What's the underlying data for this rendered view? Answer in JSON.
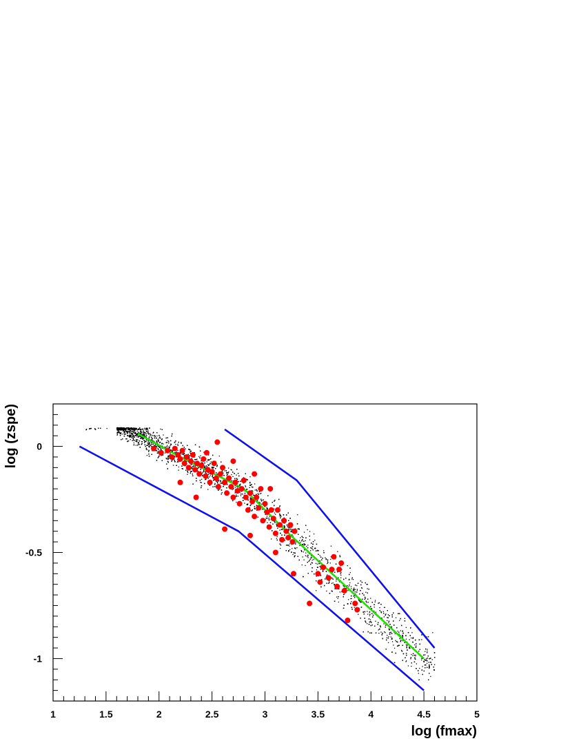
{
  "chart_data": {
    "type": "scatter",
    "title": "",
    "xlabel": "log (fmax)",
    "ylabel": "log (zspe)",
    "xlim": [
      1,
      5
    ],
    "ylim": [
      -1.2,
      0.2
    ],
    "xticks": [
      1,
      1.5,
      2,
      2.5,
      3,
      3.5,
      4,
      4.5,
      5
    ],
    "xtick_labels": [
      "1",
      "1.5",
      "2",
      "2.5",
      "3",
      "3.5",
      "4",
      "4.5",
      "5"
    ],
    "yticks": [
      0,
      -0.5,
      -1
    ],
    "ytick_labels": [
      "0",
      "-0.5",
      "-1"
    ],
    "grid": false,
    "colors": {
      "points": "#000000",
      "highlight": "#ff0000",
      "fit": "#22dd00",
      "bounds": "#1010ee",
      "frame": "#000000"
    },
    "series": [
      {
        "kind": "band-center-line",
        "color": "#22dd00",
        "points": [
          [
            1.8,
            0.06
          ],
          [
            2.2,
            -0.05
          ],
          [
            2.8,
            -0.2
          ],
          [
            3.2,
            -0.4
          ],
          [
            4.5,
            -1.0
          ]
        ]
      },
      {
        "kind": "upper-bound-line",
        "color": "#1010ee",
        "points": [
          [
            2.62,
            0.08
          ],
          [
            3.3,
            -0.16
          ],
          [
            4.6,
            -0.95
          ]
        ]
      },
      {
        "kind": "lower-bound-line",
        "color": "#1010ee",
        "points": [
          [
            1.25,
            0.0
          ],
          [
            2.75,
            -0.4
          ],
          [
            4.5,
            -1.15
          ]
        ]
      },
      {
        "kind": "red-points",
        "color": "#ff0000",
        "points": [
          [
            1.95,
            -0.01
          ],
          [
            2.02,
            -0.03
          ],
          [
            2.08,
            -0.02
          ],
          [
            2.12,
            -0.05
          ],
          [
            2.15,
            -0.01
          ],
          [
            2.18,
            -0.04
          ],
          [
            2.2,
            -0.06
          ],
          [
            2.22,
            -0.02
          ],
          [
            2.24,
            -0.08
          ],
          [
            2.26,
            -0.05
          ],
          [
            2.28,
            -0.1
          ],
          [
            2.3,
            -0.07
          ],
          [
            2.32,
            -0.04
          ],
          [
            2.34,
            -0.11
          ],
          [
            2.36,
            -0.08
          ],
          [
            2.38,
            -0.13
          ],
          [
            2.4,
            -0.09
          ],
          [
            2.42,
            -0.06
          ],
          [
            2.44,
            -0.14
          ],
          [
            2.46,
            -0.11
          ],
          [
            2.48,
            -0.17
          ],
          [
            2.5,
            -0.12
          ],
          [
            2.52,
            -0.08
          ],
          [
            2.54,
            -0.15
          ],
          [
            2.56,
            -0.19
          ],
          [
            2.58,
            -0.13
          ],
          [
            2.6,
            -0.1
          ],
          [
            2.62,
            -0.17
          ],
          [
            2.64,
            -0.22
          ],
          [
            2.66,
            -0.15
          ],
          [
            2.68,
            -0.19
          ],
          [
            2.7,
            -0.24
          ],
          [
            2.72,
            -0.17
          ],
          [
            2.74,
            -0.21
          ],
          [
            2.76,
            -0.27
          ],
          [
            2.78,
            -0.2
          ],
          [
            2.8,
            -0.16
          ],
          [
            2.82,
            -0.24
          ],
          [
            2.84,
            -0.3
          ],
          [
            2.86,
            -0.22
          ],
          [
            2.88,
            -0.26
          ],
          [
            2.9,
            -0.33
          ],
          [
            2.92,
            -0.24
          ],
          [
            2.94,
            -0.29
          ],
          [
            2.96,
            -0.2
          ],
          [
            2.98,
            -0.35
          ],
          [
            3.0,
            -0.27
          ],
          [
            3.02,
            -0.31
          ],
          [
            3.04,
            -0.38
          ],
          [
            3.06,
            -0.3
          ],
          [
            3.08,
            -0.34
          ],
          [
            3.1,
            -0.41
          ],
          [
            3.12,
            -0.3
          ],
          [
            3.14,
            -0.37
          ],
          [
            3.16,
            -0.44
          ],
          [
            3.18,
            -0.35
          ],
          [
            3.2,
            -0.4
          ],
          [
            3.22,
            -0.43
          ],
          [
            3.24,
            -0.37
          ],
          [
            3.26,
            -0.45
          ],
          [
            3.28,
            -0.4
          ],
          [
            2.55,
            0.02
          ],
          [
            2.35,
            -0.24
          ],
          [
            2.2,
            -0.17
          ],
          [
            2.62,
            -0.39
          ],
          [
            2.86,
            -0.42
          ],
          [
            3.1,
            -0.5
          ],
          [
            3.27,
            -0.6
          ],
          [
            3.42,
            -0.74
          ],
          [
            3.5,
            -0.6
          ],
          [
            3.55,
            -0.57
          ],
          [
            3.6,
            -0.62
          ],
          [
            3.65,
            -0.52
          ],
          [
            3.68,
            -0.66
          ],
          [
            3.7,
            -0.58
          ],
          [
            3.72,
            -0.55
          ],
          [
            3.75,
            -0.68
          ],
          [
            3.78,
            -0.82
          ],
          [
            3.85,
            -0.74
          ],
          [
            3.87,
            -0.77
          ],
          [
            3.52,
            -0.64
          ],
          [
            3.63,
            -0.58
          ],
          [
            2.45,
            -0.03
          ],
          [
            2.7,
            -0.07
          ],
          [
            2.9,
            -0.13
          ],
          [
            3.05,
            -0.2
          ]
        ]
      }
    ]
  }
}
